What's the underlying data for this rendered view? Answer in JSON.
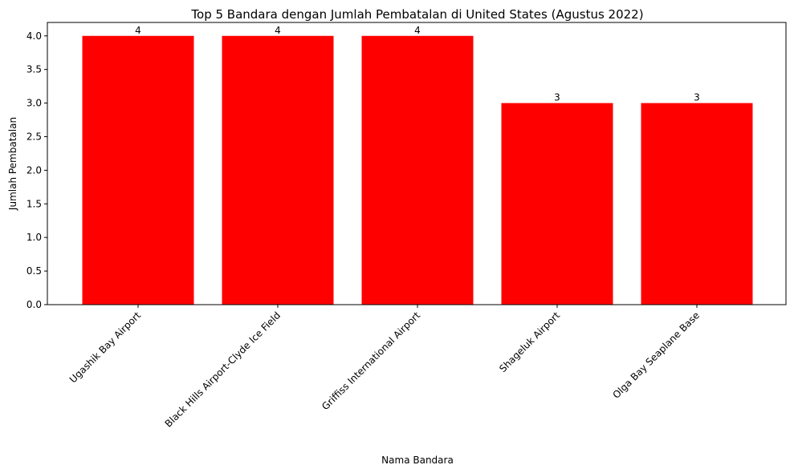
{
  "chart_data": {
    "type": "bar",
    "title": "Top 5 Bandara dengan Jumlah Pembatalan di United States (Agustus 2022)",
    "xlabel": "Nama Bandara",
    "ylabel": "Jumlah Pembatalan",
    "categories": [
      "Ugashik Bay Airport",
      "Black Hills Airport-Clyde Ice Field",
      "Griffiss International Airport",
      "Shageluk Airport",
      "Olga Bay Seaplane Base"
    ],
    "values": [
      4,
      4,
      4,
      3,
      3
    ],
    "data_labels": [
      "4",
      "4",
      "4",
      "3",
      "3"
    ],
    "ylim": [
      0,
      4.2
    ],
    "yticks": [
      0.0,
      0.5,
      1.0,
      1.5,
      2.0,
      2.5,
      3.0,
      3.5,
      4.0
    ],
    "ytick_labels": [
      "0.0",
      "0.5",
      "1.0",
      "1.5",
      "2.0",
      "2.5",
      "3.0",
      "3.5",
      "4.0"
    ],
    "bar_color": "#ff0000",
    "grid": false,
    "legend": "none"
  }
}
